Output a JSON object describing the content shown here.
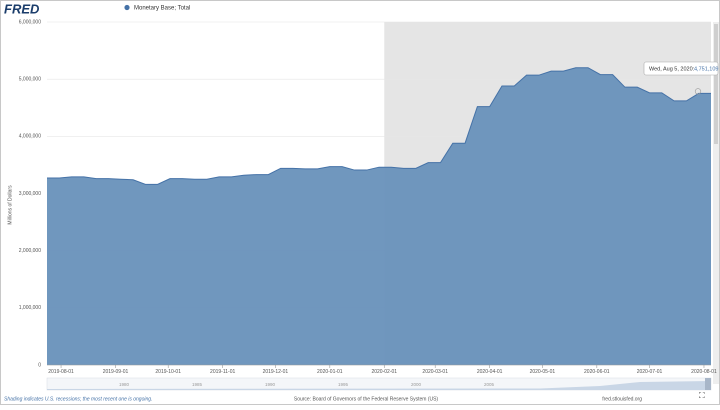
{
  "chart_data": {
    "type": "area",
    "logo": "FRED",
    "y_label": "Millions of Dollars",
    "footnote": "Shading indicates U.S. recessions; the most recent one is ongoing.",
    "source": "Source: Board of Governors of the Federal Reserve System (US)",
    "site": "fred.stlouisfed.org",
    "recession_start": "2020-02-01",
    "xlim": [
      "2019-07-24",
      "2020-08-05"
    ],
    "xticks": [
      "2019-08-01",
      "2019-09-01",
      "2019-10-01",
      "2019-11-01",
      "2019-12-01",
      "2020-01-01",
      "2020-02-01",
      "2020-03-01",
      "2020-04-01",
      "2020-05-01",
      "2020-06-01",
      "2020-07-01",
      "2020-08-01"
    ],
    "ylim": [
      0,
      6000000
    ],
    "yticks": [
      0,
      {
        "value": 1000000,
        "label": "1,000,000"
      },
      {
        "value": 2000000,
        "label": "2,000,000"
      },
      {
        "value": 3000000,
        "label": "3,000,000"
      },
      {
        "value": 4000000,
        "label": "4,000,000"
      },
      {
        "value": 5000000,
        "label": "5,000,000"
      },
      {
        "value": 6000000,
        "label": "6,000,000"
      }
    ],
    "grid": true,
    "navigator_years": [
      "1980",
      "1985",
      "1990",
      "1995",
      "2000",
      "2005"
    ],
    "tooltip": {
      "date": "Wed, Aug 5, 2020:",
      "value": "4,751,109"
    },
    "x": [
      "2019-07-24",
      "2019-07-31",
      "2019-08-07",
      "2019-08-14",
      "2019-08-21",
      "2019-08-28",
      "2019-09-04",
      "2019-09-11",
      "2019-09-18",
      "2019-09-25",
      "2019-10-02",
      "2019-10-09",
      "2019-10-16",
      "2019-10-23",
      "2019-10-30",
      "2019-11-06",
      "2019-11-13",
      "2019-11-20",
      "2019-11-27",
      "2019-12-04",
      "2019-12-11",
      "2019-12-18",
      "2019-12-25",
      "2020-01-01",
      "2020-01-08",
      "2020-01-15",
      "2020-01-22",
      "2020-01-29",
      "2020-02-05",
      "2020-02-12",
      "2020-02-19",
      "2020-02-26",
      "2020-03-04",
      "2020-03-11",
      "2020-03-18",
      "2020-03-25",
      "2020-04-01",
      "2020-04-08",
      "2020-04-15",
      "2020-04-22",
      "2020-04-29",
      "2020-05-06",
      "2020-05-13",
      "2020-05-20",
      "2020-05-27",
      "2020-06-03",
      "2020-06-10",
      "2020-06-17",
      "2020-06-24",
      "2020-07-01",
      "2020-07-08",
      "2020-07-15",
      "2020-07-22",
      "2020-07-29",
      "2020-08-05"
    ],
    "series": [
      {
        "name": "Monetary Base; Total",
        "color": "#4572a7",
        "fill": "#6891bb",
        "values": [
          3270000,
          3270000,
          3290000,
          3290000,
          3260000,
          3260000,
          3250000,
          3240000,
          3160000,
          3160000,
          3260000,
          3260000,
          3250000,
          3250000,
          3290000,
          3290000,
          3320000,
          3330000,
          3330000,
          3440000,
          3440000,
          3430000,
          3430000,
          3470000,
          3470000,
          3410000,
          3410000,
          3460000,
          3460000,
          3440000,
          3440000,
          3540000,
          3540000,
          3880000,
          3880000,
          4520000,
          4520000,
          4880000,
          4880000,
          5070000,
          5070000,
          5140000,
          5140000,
          5200000,
          5200000,
          5080000,
          5080000,
          4860000,
          4860000,
          4760000,
          4760000,
          4620000,
          4620000,
          4751109,
          4751109
        ]
      }
    ]
  }
}
